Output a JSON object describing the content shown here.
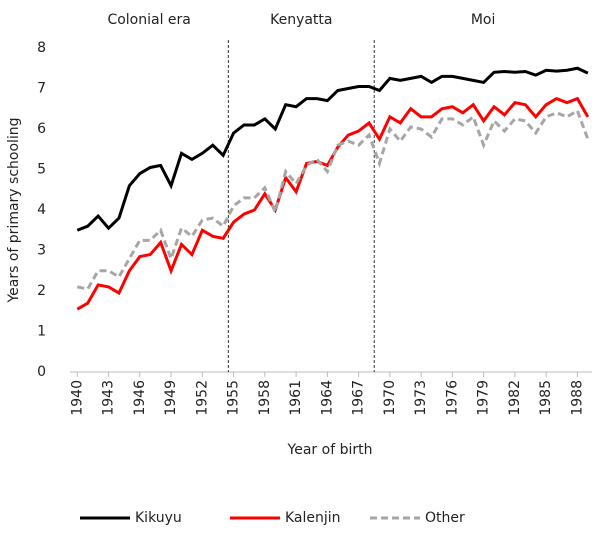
{
  "chart_data": {
    "type": "line",
    "x_label": "Year of birth",
    "y_label": "Years of primary schooling",
    "x": [
      1940,
      1941,
      1942,
      1943,
      1944,
      1945,
      1946,
      1947,
      1948,
      1949,
      1950,
      1951,
      1952,
      1953,
      1954,
      1955,
      1956,
      1957,
      1958,
      1959,
      1960,
      1961,
      1962,
      1963,
      1964,
      1965,
      1966,
      1967,
      1968,
      1969,
      1970,
      1971,
      1972,
      1973,
      1974,
      1975,
      1976,
      1977,
      1978,
      1979,
      1980,
      1981,
      1982,
      1983,
      1984,
      1985,
      1986,
      1987,
      1988,
      1989
    ],
    "xlim": [
      1939.3,
      1989.4
    ],
    "xticks": [
      1940,
      1943,
      1946,
      1949,
      1952,
      1955,
      1958,
      1961,
      1964,
      1967,
      1970,
      1973,
      1976,
      1979,
      1982,
      1985,
      1988
    ],
    "ylim": [
      0,
      8
    ],
    "yticks": [
      0,
      1,
      2,
      3,
      4,
      5,
      6,
      7,
      8
    ],
    "grid": false,
    "legend": "bottom",
    "dividers": [
      1954.5,
      1968.5
    ],
    "eras": [
      "Colonial era",
      "Kenyatta",
      "Moi"
    ],
    "series": [
      {
        "name": "Kikuyu",
        "color": "#000000",
        "dash": false,
        "values": [
          3.5,
          3.6,
          3.85,
          3.55,
          3.8,
          4.6,
          4.9,
          5.05,
          5.1,
          4.6,
          5.4,
          5.25,
          5.4,
          5.6,
          5.35,
          5.9,
          6.1,
          6.1,
          6.25,
          6.0,
          6.6,
          6.55,
          6.75,
          6.75,
          6.7,
          6.95,
          7.0,
          7.05,
          7.05,
          6.95,
          7.25,
          7.2,
          7.25,
          7.3,
          7.15,
          7.3,
          7.3,
          7.25,
          7.2,
          7.15,
          7.4,
          7.42,
          7.4,
          7.42,
          7.33,
          7.45,
          7.43,
          7.45,
          7.5,
          7.38
        ]
      },
      {
        "name": "Kalenjin",
        "color": "#ff0000",
        "dash": false,
        "values": [
          1.55,
          1.7,
          2.15,
          2.1,
          1.95,
          2.5,
          2.85,
          2.9,
          3.2,
          2.5,
          3.15,
          2.9,
          3.5,
          3.35,
          3.3,
          3.7,
          3.9,
          4.0,
          4.4,
          4.0,
          4.8,
          4.45,
          5.15,
          5.2,
          5.1,
          5.55,
          5.85,
          5.95,
          6.15,
          5.75,
          6.3,
          6.15,
          6.5,
          6.3,
          6.3,
          6.5,
          6.55,
          6.4,
          6.6,
          6.2,
          6.55,
          6.35,
          6.65,
          6.6,
          6.3,
          6.6,
          6.75,
          6.65,
          6.75,
          6.3
        ]
      },
      {
        "name": "Other",
        "color": "#a6a6a6",
        "dash": true,
        "values": [
          2.1,
          2.05,
          2.5,
          2.5,
          2.35,
          2.8,
          3.25,
          3.25,
          3.5,
          2.8,
          3.55,
          3.35,
          3.75,
          3.8,
          3.6,
          4.1,
          4.3,
          4.3,
          4.55,
          3.95,
          4.95,
          4.65,
          5.1,
          5.25,
          4.95,
          5.6,
          5.7,
          5.6,
          5.85,
          5.15,
          6.0,
          5.7,
          6.05,
          6.0,
          5.8,
          6.25,
          6.25,
          6.1,
          6.3,
          5.6,
          6.2,
          5.95,
          6.25,
          6.2,
          5.9,
          6.3,
          6.4,
          6.3,
          6.45,
          5.75
        ]
      }
    ]
  }
}
